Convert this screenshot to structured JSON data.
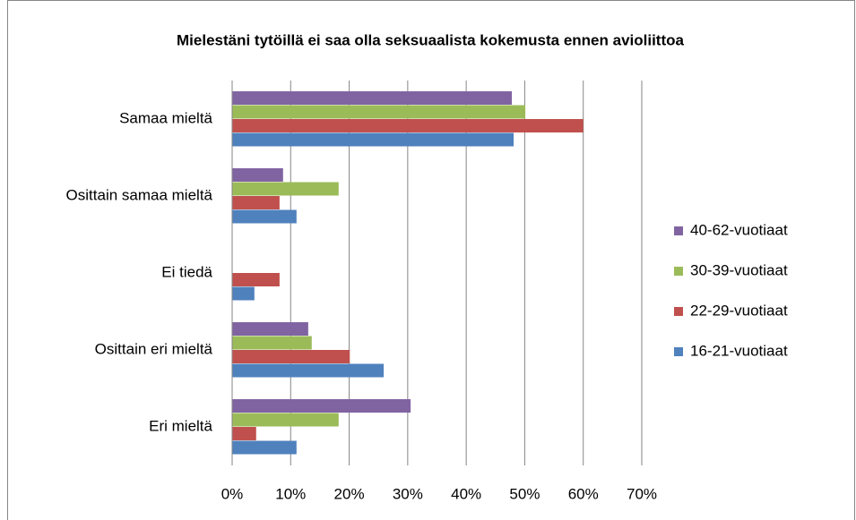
{
  "chart_data": {
    "type": "hbar",
    "title": "Mielestäni tytöillä ei saa olla seksuaalista kokemusta ennen avioliittoa",
    "categories": [
      "Samaa mieltä",
      "Osittain samaa mieltä",
      "Ei tiedä",
      "Osittain eri mieltä",
      "Eri mieltä"
    ],
    "series": [
      {
        "name": "40-62-vuotiaat",
        "color": "#8064a2",
        "values": [
          47.8,
          8.7,
          0,
          13.0,
          30.5
        ]
      },
      {
        "name": "30-39-vuotiaat",
        "color": "#9bbb59",
        "values": [
          50.1,
          18.2,
          0,
          13.6,
          18.2
        ]
      },
      {
        "name": "22-29-vuotiaat",
        "color": "#c0504d",
        "values": [
          60.0,
          8.1,
          8.1,
          20.1,
          4.1
        ]
      },
      {
        "name": "16-21-vuotiaat",
        "color": "#4f81bd",
        "values": [
          48.1,
          11.0,
          3.8,
          25.9,
          11.0
        ]
      }
    ],
    "xlim": [
      0,
      70
    ],
    "xticks": [
      {
        "value": 0,
        "label": "0%"
      },
      {
        "value": 10,
        "label": "10%"
      },
      {
        "value": 20,
        "label": "20%"
      },
      {
        "value": 30,
        "label": "30%"
      },
      {
        "value": 40,
        "label": "40%"
      },
      {
        "value": 50,
        "label": "50%"
      },
      {
        "value": 60,
        "label": "60%"
      },
      {
        "value": 70,
        "label": "70%"
      }
    ],
    "grid": true,
    "legend": "right"
  }
}
